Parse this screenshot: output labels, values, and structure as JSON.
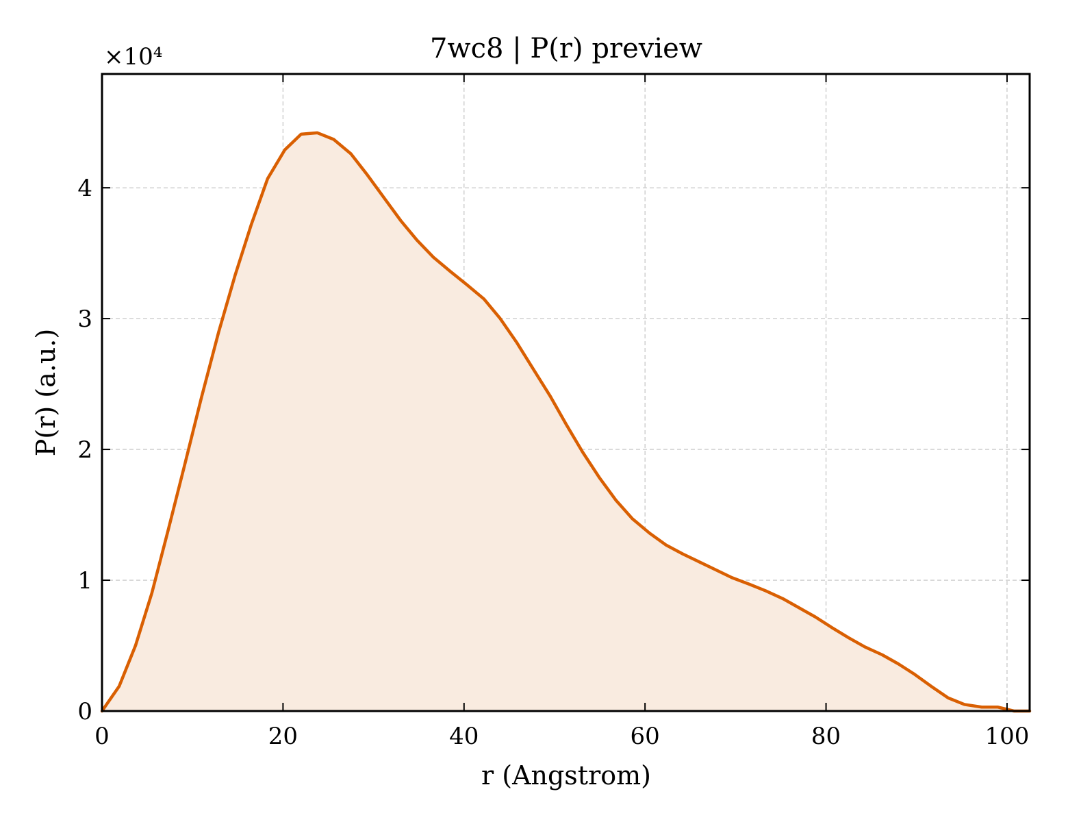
{
  "chart_data": {
    "type": "area",
    "title": "7wc8 | P(r) preview",
    "xlabel": "r (Angstrom)",
    "ylabel": "P(r) (a.u.)",
    "y_multiplier": "×10⁴",
    "xlim": [
      0,
      102.5
    ],
    "ylim": [
      0,
      4.87
    ],
    "x_ticks": [
      0,
      20,
      40,
      60,
      80,
      100
    ],
    "y_ticks": [
      0,
      1,
      2,
      3,
      4
    ],
    "grid": true,
    "tick_direction": "in",
    "line_color": "#d95f02",
    "fill_color": "#f9ebe0",
    "series": [
      {
        "x": [
          0,
          1.9,
          3.7,
          5.5,
          7.3,
          9.2,
          11.0,
          12.9,
          14.7,
          16.5,
          18.3,
          20.2,
          22.0,
          23.8,
          25.6,
          27.5,
          29.3,
          31.2,
          33.0,
          34.8,
          36.6,
          38.5,
          40.3,
          42.2,
          44.0,
          45.8,
          47.6,
          49.5,
          51.3,
          53.1,
          55.0,
          56.8,
          58.6,
          60.5,
          62.3,
          64.2,
          66.0,
          67.8,
          69.6,
          71.5,
          73.3,
          75.2,
          77.0,
          78.8,
          80.6,
          82.5,
          84.3,
          86.2,
          88.0,
          89.8,
          91.6,
          93.5,
          95.3,
          97.2,
          99.0,
          100.8,
          102.5
        ],
        "y": [
          0.0,
          0.19,
          0.5,
          0.9,
          1.38,
          1.9,
          2.4,
          2.9,
          3.33,
          3.72,
          4.07,
          4.29,
          4.41,
          4.42,
          4.37,
          4.26,
          4.1,
          3.92,
          3.75,
          3.6,
          3.47,
          3.36,
          3.26,
          3.15,
          3.0,
          2.82,
          2.62,
          2.41,
          2.19,
          1.98,
          1.78,
          1.61,
          1.47,
          1.36,
          1.27,
          1.2,
          1.14,
          1.08,
          1.02,
          0.97,
          0.92,
          0.86,
          0.79,
          0.72,
          0.64,
          0.56,
          0.49,
          0.43,
          0.36,
          0.28,
          0.19,
          0.1,
          0.05,
          0.03,
          0.03,
          0.0,
          0.0
        ]
      }
    ]
  }
}
